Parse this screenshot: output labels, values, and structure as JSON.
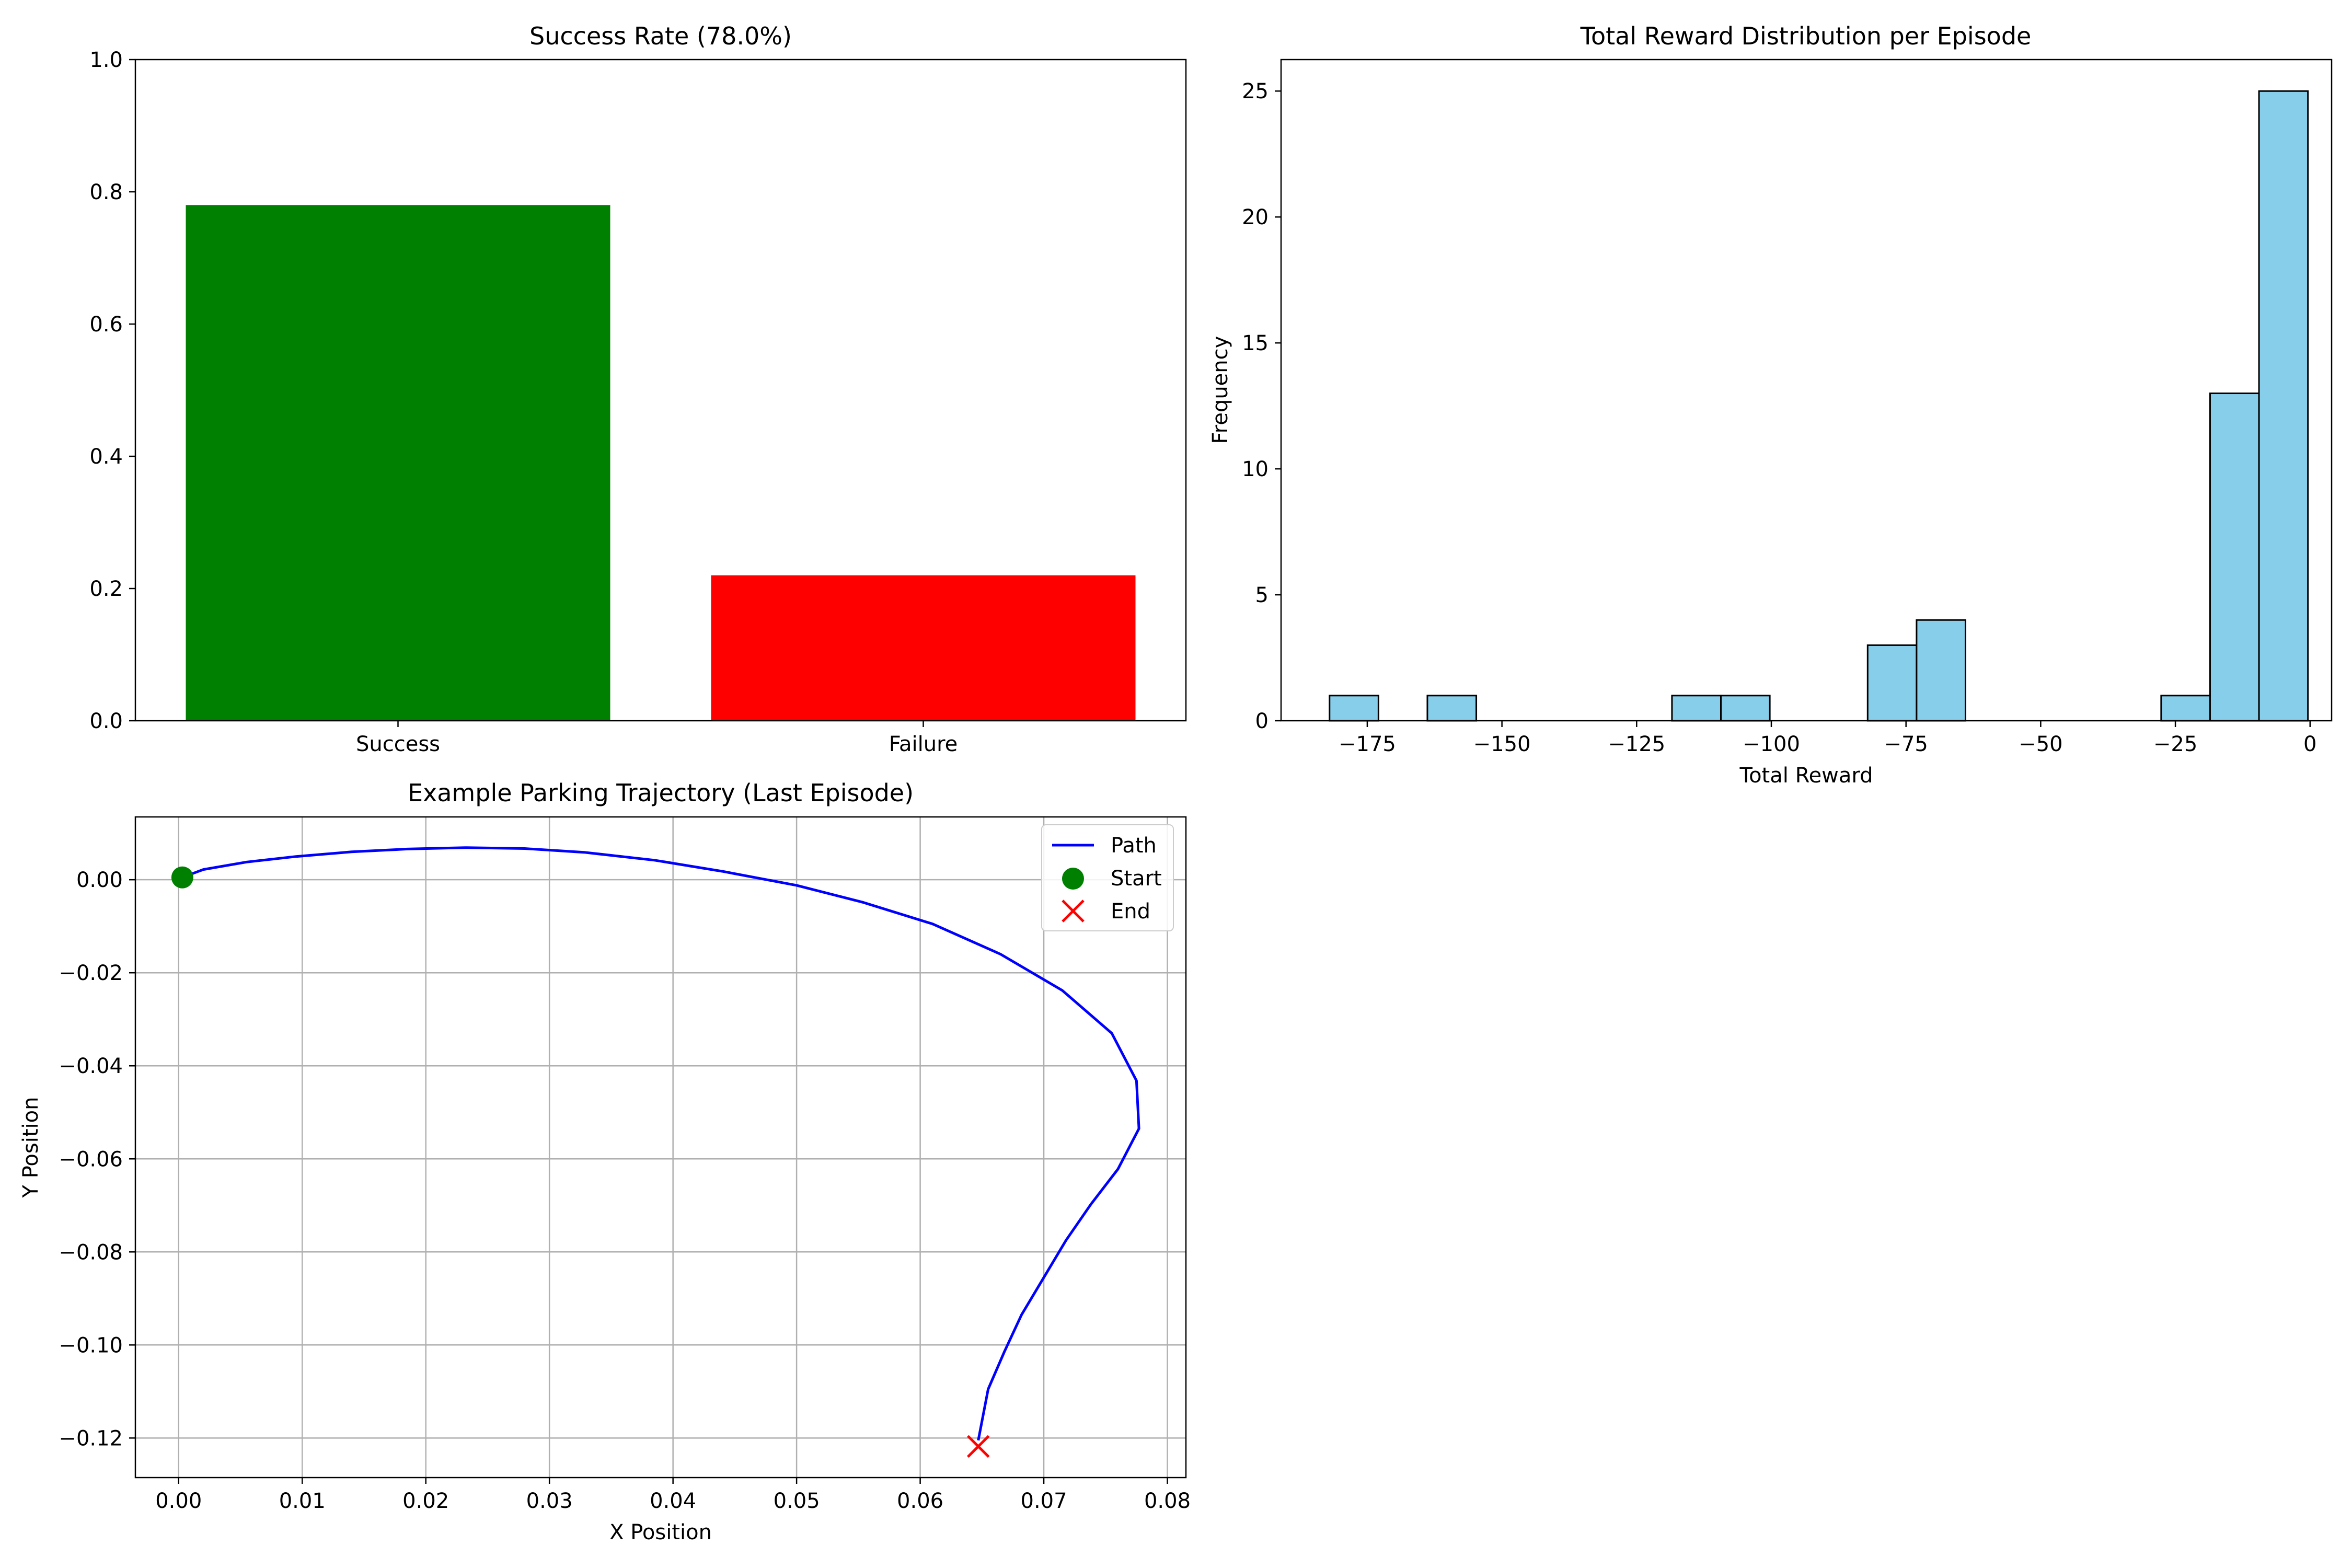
{
  "chart_data": [
    {
      "type": "bar",
      "title": "Success Rate (78.0%)",
      "categories": [
        "Success",
        "Failure"
      ],
      "values": [
        0.78,
        0.22
      ],
      "colors": [
        "#008000",
        "#ff0000"
      ],
      "xlabel": "",
      "ylabel": "",
      "ylim": [
        0,
        1.0
      ],
      "yticks": [
        "0.0",
        "0.2",
        "0.4",
        "0.6",
        "0.8",
        "1.0"
      ],
      "grid": false
    },
    {
      "type": "bar",
      "title": "Total Reward Distribution per Episode",
      "xlabel": "Total Reward",
      "ylabel": "Frequency",
      "bar_color": "#87ceeb",
      "edge_color": "#000000",
      "bin_width": 9.08,
      "bins": [
        {
          "x0": -182.0,
          "x1": -172.92,
          "count": 1
        },
        {
          "x0": -163.84,
          "x1": -154.76,
          "count": 1
        },
        {
          "x0": -118.44,
          "x1": -109.36,
          "count": 1
        },
        {
          "x0": -109.36,
          "x1": -100.28,
          "count": 1
        },
        {
          "x0": -82.12,
          "x1": -73.04,
          "count": 3
        },
        {
          "x0": -73.04,
          "x1": -63.96,
          "count": 4
        },
        {
          "x0": -27.64,
          "x1": -18.56,
          "count": 1
        },
        {
          "x0": -18.56,
          "x1": -9.48,
          "count": 13
        },
        {
          "x0": -9.48,
          "x1": -0.4,
          "count": 25
        }
      ],
      "xlim": [
        -191,
        4
      ],
      "ylim": [
        0,
        26.25
      ],
      "xticks": [
        {
          "value": -175,
          "label": "−175"
        },
        {
          "value": -150,
          "label": "−150"
        },
        {
          "value": -125,
          "label": "−125"
        },
        {
          "value": -100,
          "label": "−100"
        },
        {
          "value": -75,
          "label": "−75"
        },
        {
          "value": -50,
          "label": "−50"
        },
        {
          "value": -25,
          "label": "−25"
        },
        {
          "value": 0,
          "label": "0"
        }
      ],
      "yticks": [
        {
          "value": 0,
          "label": "0"
        },
        {
          "value": 5,
          "label": "5"
        },
        {
          "value": 10,
          "label": "10"
        },
        {
          "value": 15,
          "label": "15"
        },
        {
          "value": 20,
          "label": "20"
        },
        {
          "value": 25,
          "label": "25"
        }
      ],
      "grid": false
    },
    {
      "type": "line",
      "title": "Example Parking Trajectory (Last Episode)",
      "xlabel": "X Position",
      "ylabel": "Y Position",
      "grid": true,
      "legend_position": "top-right",
      "xlim": [
        -0.0035,
        0.0815
      ],
      "ylim": [
        -0.1285,
        0.0135
      ],
      "xticks": [
        {
          "value": 0.0,
          "label": "0.00"
        },
        {
          "value": 0.01,
          "label": "0.01"
        },
        {
          "value": 0.02,
          "label": "0.02"
        },
        {
          "value": 0.03,
          "label": "0.03"
        },
        {
          "value": 0.04,
          "label": "0.04"
        },
        {
          "value": 0.05,
          "label": "0.05"
        },
        {
          "value": 0.06,
          "label": "0.06"
        },
        {
          "value": 0.07,
          "label": "0.07"
        },
        {
          "value": 0.08,
          "label": "0.08"
        }
      ],
      "yticks": [
        {
          "value": 0.0,
          "label": "0.00"
        },
        {
          "value": -0.02,
          "label": "−0.02"
        },
        {
          "value": -0.04,
          "label": "−0.04"
        },
        {
          "value": -0.06,
          "label": "−0.06"
        },
        {
          "value": -0.08,
          "label": "−0.08"
        },
        {
          "value": -0.1,
          "label": "−0.10"
        },
        {
          "value": -0.12,
          "label": "−0.12"
        }
      ],
      "series": [
        {
          "name": "Path",
          "color": "#0000ff",
          "points": [
            [
              0.0003,
              0.0005
            ],
            [
              0.002,
              0.0022
            ],
            [
              0.0055,
              0.0038
            ],
            [
              0.0095,
              0.005
            ],
            [
              0.014,
              0.006
            ],
            [
              0.0185,
              0.0066
            ],
            [
              0.0233,
              0.0069
            ],
            [
              0.028,
              0.0067
            ],
            [
              0.0328,
              0.0059
            ],
            [
              0.0385,
              0.0042
            ],
            [
              0.044,
              0.0018
            ],
            [
              0.05,
              -0.0012
            ],
            [
              0.0553,
              -0.0048
            ],
            [
              0.061,
              -0.0095
            ],
            [
              0.0665,
              -0.016
            ],
            [
              0.0715,
              -0.0238
            ],
            [
              0.0755,
              -0.033
            ],
            [
              0.0775,
              -0.0432
            ],
            [
              0.0777,
              -0.0535
            ],
            [
              0.076,
              -0.0622
            ],
            [
              0.0738,
              -0.0698
            ],
            [
              0.0718,
              -0.0775
            ],
            [
              0.07,
              -0.0855
            ],
            [
              0.0682,
              -0.0935
            ],
            [
              0.0668,
              -0.1015
            ],
            [
              0.0655,
              -0.1095
            ],
            [
              0.0647,
              -0.1205
            ]
          ]
        }
      ],
      "markers": [
        {
          "name": "Start",
          "x": 0.0003,
          "y": 0.0005,
          "color": "#008000",
          "shape": "circle"
        },
        {
          "name": "End",
          "x": 0.0647,
          "y": -0.1218,
          "color": "#ff0000",
          "shape": "x"
        }
      ]
    }
  ]
}
